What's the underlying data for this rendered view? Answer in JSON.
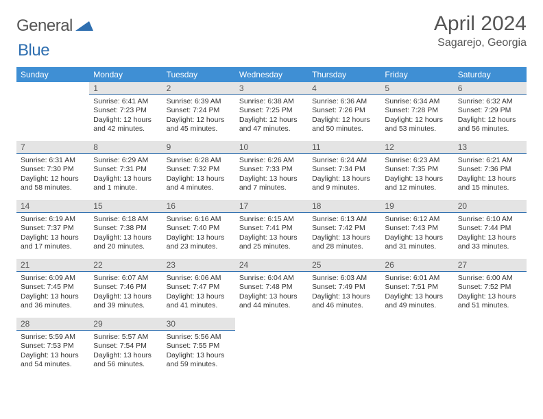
{
  "logo": {
    "part1": "General",
    "part2": "Blue"
  },
  "header": {
    "title": "April 2024",
    "location": "Sagarejo, Georgia"
  },
  "colors": {
    "header_bg": "#3f8fd4",
    "header_text": "#ffffff",
    "daybar_bg": "#e4e4e4",
    "daybar_border": "#2f6fb0",
    "text": "#333333",
    "title_text": "#555555"
  },
  "weekdays": [
    "Sunday",
    "Monday",
    "Tuesday",
    "Wednesday",
    "Thursday",
    "Friday",
    "Saturday"
  ],
  "weeks": [
    [
      null,
      {
        "n": "1",
        "sr": "Sunrise: 6:41 AM",
        "ss": "Sunset: 7:23 PM",
        "dl": "Daylight: 12 hours and 42 minutes."
      },
      {
        "n": "2",
        "sr": "Sunrise: 6:39 AM",
        "ss": "Sunset: 7:24 PM",
        "dl": "Daylight: 12 hours and 45 minutes."
      },
      {
        "n": "3",
        "sr": "Sunrise: 6:38 AM",
        "ss": "Sunset: 7:25 PM",
        "dl": "Daylight: 12 hours and 47 minutes."
      },
      {
        "n": "4",
        "sr": "Sunrise: 6:36 AM",
        "ss": "Sunset: 7:26 PM",
        "dl": "Daylight: 12 hours and 50 minutes."
      },
      {
        "n": "5",
        "sr": "Sunrise: 6:34 AM",
        "ss": "Sunset: 7:28 PM",
        "dl": "Daylight: 12 hours and 53 minutes."
      },
      {
        "n": "6",
        "sr": "Sunrise: 6:32 AM",
        "ss": "Sunset: 7:29 PM",
        "dl": "Daylight: 12 hours and 56 minutes."
      }
    ],
    [
      {
        "n": "7",
        "sr": "Sunrise: 6:31 AM",
        "ss": "Sunset: 7:30 PM",
        "dl": "Daylight: 12 hours and 58 minutes."
      },
      {
        "n": "8",
        "sr": "Sunrise: 6:29 AM",
        "ss": "Sunset: 7:31 PM",
        "dl": "Daylight: 13 hours and 1 minute."
      },
      {
        "n": "9",
        "sr": "Sunrise: 6:28 AM",
        "ss": "Sunset: 7:32 PM",
        "dl": "Daylight: 13 hours and 4 minutes."
      },
      {
        "n": "10",
        "sr": "Sunrise: 6:26 AM",
        "ss": "Sunset: 7:33 PM",
        "dl": "Daylight: 13 hours and 7 minutes."
      },
      {
        "n": "11",
        "sr": "Sunrise: 6:24 AM",
        "ss": "Sunset: 7:34 PM",
        "dl": "Daylight: 13 hours and 9 minutes."
      },
      {
        "n": "12",
        "sr": "Sunrise: 6:23 AM",
        "ss": "Sunset: 7:35 PM",
        "dl": "Daylight: 13 hours and 12 minutes."
      },
      {
        "n": "13",
        "sr": "Sunrise: 6:21 AM",
        "ss": "Sunset: 7:36 PM",
        "dl": "Daylight: 13 hours and 15 minutes."
      }
    ],
    [
      {
        "n": "14",
        "sr": "Sunrise: 6:19 AM",
        "ss": "Sunset: 7:37 PM",
        "dl": "Daylight: 13 hours and 17 minutes."
      },
      {
        "n": "15",
        "sr": "Sunrise: 6:18 AM",
        "ss": "Sunset: 7:38 PM",
        "dl": "Daylight: 13 hours and 20 minutes."
      },
      {
        "n": "16",
        "sr": "Sunrise: 6:16 AM",
        "ss": "Sunset: 7:40 PM",
        "dl": "Daylight: 13 hours and 23 minutes."
      },
      {
        "n": "17",
        "sr": "Sunrise: 6:15 AM",
        "ss": "Sunset: 7:41 PM",
        "dl": "Daylight: 13 hours and 25 minutes."
      },
      {
        "n": "18",
        "sr": "Sunrise: 6:13 AM",
        "ss": "Sunset: 7:42 PM",
        "dl": "Daylight: 13 hours and 28 minutes."
      },
      {
        "n": "19",
        "sr": "Sunrise: 6:12 AM",
        "ss": "Sunset: 7:43 PM",
        "dl": "Daylight: 13 hours and 31 minutes."
      },
      {
        "n": "20",
        "sr": "Sunrise: 6:10 AM",
        "ss": "Sunset: 7:44 PM",
        "dl": "Daylight: 13 hours and 33 minutes."
      }
    ],
    [
      {
        "n": "21",
        "sr": "Sunrise: 6:09 AM",
        "ss": "Sunset: 7:45 PM",
        "dl": "Daylight: 13 hours and 36 minutes."
      },
      {
        "n": "22",
        "sr": "Sunrise: 6:07 AM",
        "ss": "Sunset: 7:46 PM",
        "dl": "Daylight: 13 hours and 39 minutes."
      },
      {
        "n": "23",
        "sr": "Sunrise: 6:06 AM",
        "ss": "Sunset: 7:47 PM",
        "dl": "Daylight: 13 hours and 41 minutes."
      },
      {
        "n": "24",
        "sr": "Sunrise: 6:04 AM",
        "ss": "Sunset: 7:48 PM",
        "dl": "Daylight: 13 hours and 44 minutes."
      },
      {
        "n": "25",
        "sr": "Sunrise: 6:03 AM",
        "ss": "Sunset: 7:49 PM",
        "dl": "Daylight: 13 hours and 46 minutes."
      },
      {
        "n": "26",
        "sr": "Sunrise: 6:01 AM",
        "ss": "Sunset: 7:51 PM",
        "dl": "Daylight: 13 hours and 49 minutes."
      },
      {
        "n": "27",
        "sr": "Sunrise: 6:00 AM",
        "ss": "Sunset: 7:52 PM",
        "dl": "Daylight: 13 hours and 51 minutes."
      }
    ],
    [
      {
        "n": "28",
        "sr": "Sunrise: 5:59 AM",
        "ss": "Sunset: 7:53 PM",
        "dl": "Daylight: 13 hours and 54 minutes."
      },
      {
        "n": "29",
        "sr": "Sunrise: 5:57 AM",
        "ss": "Sunset: 7:54 PM",
        "dl": "Daylight: 13 hours and 56 minutes."
      },
      {
        "n": "30",
        "sr": "Sunrise: 5:56 AM",
        "ss": "Sunset: 7:55 PM",
        "dl": "Daylight: 13 hours and 59 minutes."
      },
      null,
      null,
      null,
      null
    ]
  ]
}
